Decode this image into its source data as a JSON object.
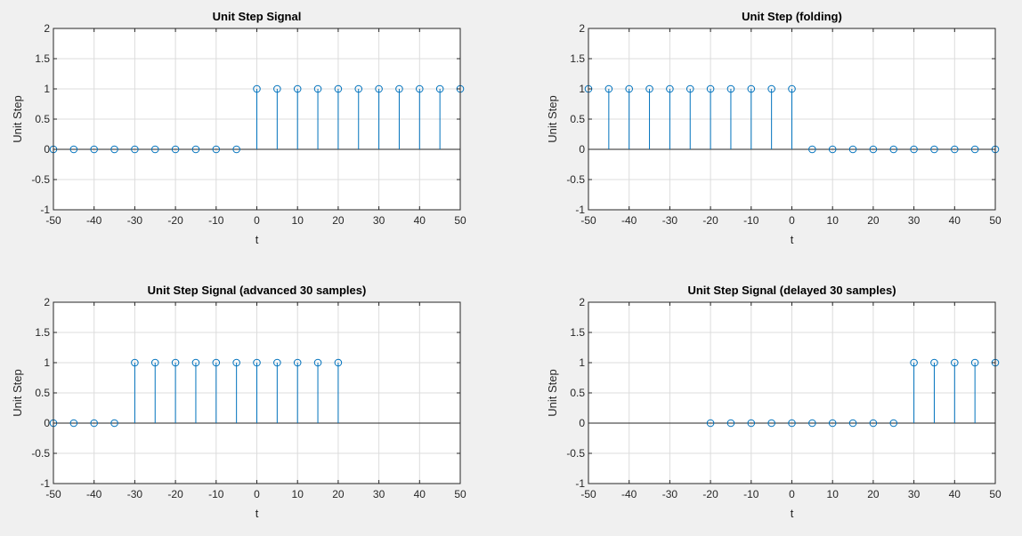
{
  "figure": {
    "background": "#f0f0f0",
    "axes_background": "#ffffff",
    "grid_color": "#dcdcdc",
    "axis_color": "#262626",
    "stem_color": "#0072bd"
  },
  "chart_data": [
    {
      "type": "stem",
      "title": "Unit Step Signal",
      "xlabel": "t",
      "ylabel": "Unit Step",
      "xlim": [
        -50,
        50
      ],
      "ylim": [
        -1,
        2
      ],
      "grid": true,
      "xticks": [
        "-50",
        "-40",
        "-30",
        "-20",
        "-10",
        "0",
        "10",
        "20",
        "30",
        "40",
        "50"
      ],
      "yticks": [
        "-1",
        "-0.5",
        "0",
        "0.5",
        "1",
        "1.5",
        "2"
      ],
      "x": [
        -50,
        -45,
        -40,
        -35,
        -30,
        -25,
        -20,
        -15,
        -10,
        -5,
        0,
        5,
        10,
        15,
        20,
        25,
        30,
        35,
        40,
        45,
        50
      ],
      "y": [
        0,
        0,
        0,
        0,
        0,
        0,
        0,
        0,
        0,
        0,
        1,
        1,
        1,
        1,
        1,
        1,
        1,
        1,
        1,
        1,
        1
      ]
    },
    {
      "type": "stem",
      "title": "Unit Step (folding)",
      "xlabel": "t",
      "ylabel": "Unit Step",
      "xlim": [
        -50,
        50
      ],
      "ylim": [
        -1,
        2
      ],
      "grid": true,
      "xticks": [
        "-50",
        "-40",
        "-30",
        "-20",
        "-10",
        "0",
        "10",
        "20",
        "30",
        "40",
        "50"
      ],
      "yticks": [
        "-1",
        "-0.5",
        "0",
        "0.5",
        "1",
        "1.5",
        "2"
      ],
      "x": [
        -50,
        -45,
        -40,
        -35,
        -30,
        -25,
        -20,
        -15,
        -10,
        -5,
        0,
        5,
        10,
        15,
        20,
        25,
        30,
        35,
        40,
        45,
        50
      ],
      "y": [
        1,
        1,
        1,
        1,
        1,
        1,
        1,
        1,
        1,
        1,
        1,
        0,
        0,
        0,
        0,
        0,
        0,
        0,
        0,
        0,
        0
      ]
    },
    {
      "type": "stem",
      "title": "Unit Step Signal (advanced 30 samples)",
      "xlabel": "t",
      "ylabel": "Unit Step",
      "xlim": [
        -50,
        50
      ],
      "ylim": [
        -1,
        2
      ],
      "grid": true,
      "xticks": [
        "-50",
        "-40",
        "-30",
        "-20",
        "-10",
        "0",
        "10",
        "20",
        "30",
        "40",
        "50"
      ],
      "yticks": [
        "-1",
        "-0.5",
        "0",
        "0.5",
        "1",
        "1.5",
        "2"
      ],
      "x": [
        -50,
        -45,
        -40,
        -35,
        -30,
        -25,
        -20,
        -15,
        -10,
        -5,
        0,
        5,
        10,
        15,
        20
      ],
      "y": [
        0,
        0,
        0,
        0,
        1,
        1,
        1,
        1,
        1,
        1,
        1,
        1,
        1,
        1,
        1
      ]
    },
    {
      "type": "stem",
      "title": "Unit Step Signal (delayed 30 samples)",
      "xlabel": "t",
      "ylabel": "Unit Step",
      "xlim": [
        -50,
        50
      ],
      "ylim": [
        -1,
        2
      ],
      "grid": true,
      "xticks": [
        "-50",
        "-40",
        "-30",
        "-20",
        "-10",
        "0",
        "10",
        "20",
        "30",
        "40",
        "50"
      ],
      "yticks": [
        "-1",
        "-0.5",
        "0",
        "0.5",
        "1",
        "1.5",
        "2"
      ],
      "x": [
        -20,
        -15,
        -10,
        -5,
        0,
        5,
        10,
        15,
        20,
        25,
        30,
        35,
        40,
        45,
        50
      ],
      "y": [
        0,
        0,
        0,
        0,
        0,
        0,
        0,
        0,
        0,
        0,
        1,
        1,
        1,
        1,
        1
      ]
    }
  ]
}
